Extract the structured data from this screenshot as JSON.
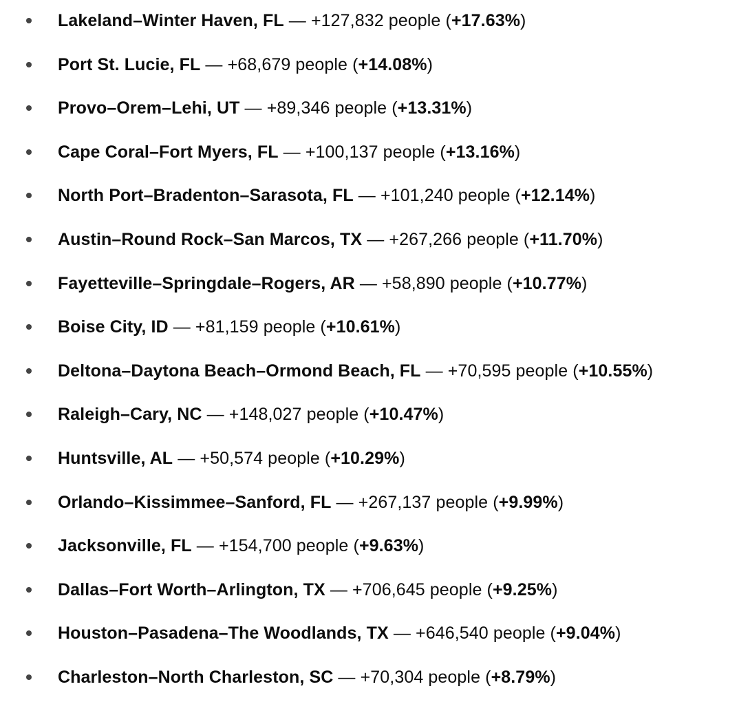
{
  "items": [
    {
      "metro": "Lakeland–Winter Haven, FL",
      "sep": " — ",
      "growth": "+127,832 people",
      "open": " (",
      "pct": "+17.63%",
      "close": ")"
    },
    {
      "metro": "Port St. Lucie, FL",
      "sep": " — ",
      "growth": "+68,679 people",
      "open": " (",
      "pct": "+14.08%",
      "close": ")"
    },
    {
      "metro": "Provo–Orem–Lehi, UT",
      "sep": " — ",
      "growth": "+89,346 people",
      "open": " (",
      "pct": "+13.31%",
      "close": ")"
    },
    {
      "metro": "Cape Coral–Fort Myers, FL",
      "sep": " — ",
      "growth": "+100,137 people",
      "open": " (",
      "pct": "+13.16%",
      "close": ")"
    },
    {
      "metro": "North Port–Bradenton–Sarasota, FL",
      "sep": " — ",
      "growth": "+101,240 people",
      "open": " (",
      "pct": "+12.14%",
      "close": ")"
    },
    {
      "metro": "Austin–Round Rock–San Marcos, TX",
      "sep": " — ",
      "growth": "+267,266 people",
      "open": " (",
      "pct": "+11.70%",
      "close": ")"
    },
    {
      "metro": "Fayetteville–Springdale–Rogers, AR",
      "sep": " — ",
      "growth": "+58,890 people",
      "open": " (",
      "pct": "+10.77%",
      "close": ")"
    },
    {
      "metro": "Boise City, ID",
      "sep": " — ",
      "growth": "+81,159 people",
      "open": " (",
      "pct": "+10.61%",
      "close": ")"
    },
    {
      "metro": "Deltona–Daytona Beach–Ormond Beach, FL",
      "sep": " — ",
      "growth": "+70,595 people",
      "open": " (",
      "pct": "+10.55%",
      "close": ")"
    },
    {
      "metro": "Raleigh–Cary, NC",
      "sep": " — ",
      "growth": "+148,027 people",
      "open": " (",
      "pct": "+10.47%",
      "close": ")"
    },
    {
      "metro": "Huntsville, AL",
      "sep": " — ",
      "growth": "+50,574 people",
      "open": " (",
      "pct": "+10.29%",
      "close": ")"
    },
    {
      "metro": "Orlando–Kissimmee–Sanford, FL",
      "sep": " — ",
      "growth": "+267,137 people",
      "open": " (",
      "pct": "+9.99%",
      "close": ")"
    },
    {
      "metro": "Jacksonville, FL",
      "sep": " — ",
      "growth": "+154,700 people",
      "open": " (",
      "pct": "+9.63%",
      "close": ")"
    },
    {
      "metro": "Dallas–Fort Worth–Arlington, TX",
      "sep": " — ",
      "growth": "+706,645 people",
      "open": " (",
      "pct": "+9.25%",
      "close": ")"
    },
    {
      "metro": "Houston–Pasadena–The Woodlands, TX",
      "sep": " — ",
      "growth": "+646,540 people",
      "open": " (",
      "pct": "+9.04%",
      "close": ")"
    },
    {
      "metro": "Charleston–North Charleston, SC",
      "sep": " — ",
      "growth": "+70,304 people",
      "open": " (",
      "pct": "+8.79%",
      "close": ")"
    }
  ]
}
